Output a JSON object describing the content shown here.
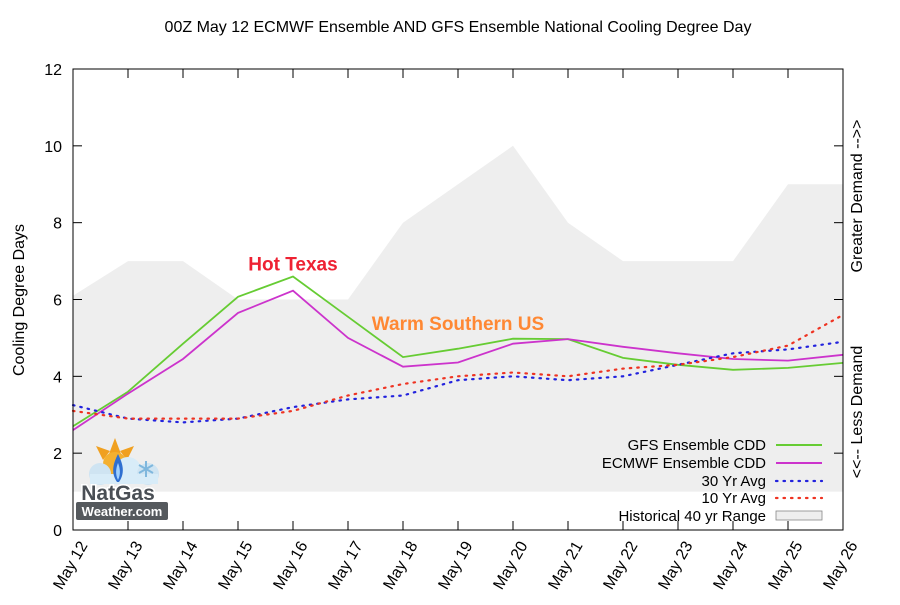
{
  "chart_data": {
    "type": "line",
    "title": "00Z May 12 ECMWF Ensemble AND GFS Ensemble National Cooling Degree Day",
    "ylabel": "Cooling Degree Days",
    "right_label_top": "Greater Demand -->>",
    "right_label_bottom": "<<-- Less Demand",
    "ylim": [
      0,
      12
    ],
    "yticks": [
      0,
      2,
      4,
      6,
      8,
      10,
      12
    ],
    "grid": false,
    "legend_position": "bottom-right",
    "x": [
      "May 12",
      "May 13",
      "May 14",
      "May 15",
      "May 16",
      "May 17",
      "May 18",
      "May 19",
      "May 20",
      "May 21",
      "May 22",
      "May 23",
      "May 24",
      "May 25",
      "May 26"
    ],
    "range": {
      "name": "Historical 40 yr Range",
      "color": "#eeeeee",
      "upper": [
        6.1,
        7.0,
        7.0,
        6.0,
        6.0,
        6.0,
        8.0,
        9.0,
        10.0,
        8.0,
        7.0,
        7.0,
        7.0,
        9.0,
        9.0
      ],
      "lower": [
        1.0,
        1.0,
        1.0,
        1.0,
        1.0,
        1.0,
        1.0,
        1.0,
        1.0,
        1.0,
        1.0,
        1.0,
        1.0,
        1.0,
        1.0
      ]
    },
    "series": [
      {
        "name": "GFS Ensemble CDD",
        "style": "solid",
        "color": "#66cc33",
        "values": [
          2.7,
          3.6,
          4.85,
          6.07,
          6.6,
          5.55,
          4.5,
          4.72,
          4.98,
          4.97,
          4.48,
          4.3,
          4.17,
          4.22,
          4.35
        ]
      },
      {
        "name": "ECMWF Ensemble CDD",
        "style": "solid",
        "color": "#cc33cc",
        "values": [
          2.6,
          3.55,
          4.45,
          5.65,
          6.23,
          5.0,
          4.25,
          4.36,
          4.85,
          4.97,
          4.77,
          4.6,
          4.45,
          4.41,
          4.56
        ]
      },
      {
        "name": "30 Yr Avg",
        "style": "dotted",
        "color": "#2222dd",
        "values": [
          3.25,
          2.9,
          2.8,
          2.9,
          3.2,
          3.4,
          3.5,
          3.9,
          4.0,
          3.9,
          4.0,
          4.3,
          4.6,
          4.7,
          4.9
        ]
      },
      {
        "name": "10 Yr Avg",
        "style": "dotted",
        "color": "#ee3322",
        "values": [
          3.1,
          2.9,
          2.9,
          2.9,
          3.1,
          3.5,
          3.8,
          4.0,
          4.1,
          4.0,
          4.2,
          4.3,
          4.5,
          4.8,
          5.6
        ]
      }
    ],
    "annotations": [
      {
        "text": "Hot Texas",
        "x": "May 16",
        "y": 6.75,
        "color": "#ee2233"
      },
      {
        "text": "Warm Southern US",
        "x": "May 19",
        "y": 5.2,
        "color": "#ff8833"
      }
    ]
  },
  "logo": {
    "line1": "NatGas",
    "line2": "Weather.com"
  }
}
